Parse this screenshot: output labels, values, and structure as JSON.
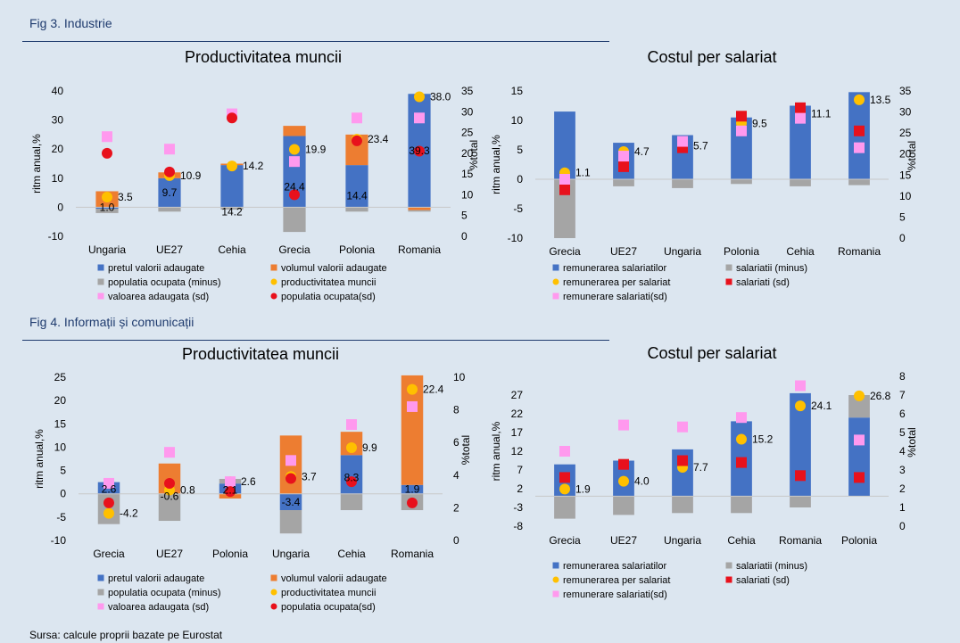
{
  "fig3": {
    "title": "Fig 3. Industrie",
    "left": {
      "title": "Productivitatea muncii",
      "ylabel": "ritm anual,%",
      "y2label": "%total",
      "legend": [
        {
          "label": "pretul valorii adaugate",
          "marker": "square",
          "color": "#4472c4"
        },
        {
          "label": "volumul valorii adaugate",
          "marker": "square",
          "color": "#ed7d31"
        },
        {
          "label": "populatia ocupata (minus)",
          "marker": "square",
          "color": "#a5a5a5"
        },
        {
          "label": "productivitatea muncii",
          "marker": "circle",
          "color": "#ffc000"
        },
        {
          "label": "valoarea adaugata (sd)",
          "marker": "square",
          "color": "#ff99ee"
        },
        {
          "label": "populatia ocupata(sd)",
          "marker": "circle",
          "color": "#e8111c"
        }
      ]
    },
    "right": {
      "title": "Costul per salariat",
      "ylabel": "ritm anual,%",
      "y2label": "%total",
      "legend": [
        {
          "label": "remunerarea salariatilor",
          "marker": "square",
          "color": "#4472c4"
        },
        {
          "label": "salariatii (minus)",
          "marker": "square",
          "color": "#a5a5a5"
        },
        {
          "label": "remunerarea per salariat",
          "marker": "circle",
          "color": "#ffc000"
        },
        {
          "label": "salariati (sd)",
          "marker": "square",
          "color": "#e8111c"
        },
        {
          "label": "remunerare salariati(sd)",
          "marker": "square",
          "color": "#ff99ee"
        }
      ]
    }
  },
  "fig4": {
    "title": "Fig 4. Informații și comunicații",
    "left": {
      "title": "Productivitatea muncii",
      "ylabel": "ritm anual,%",
      "y2label": "%total",
      "legend": [
        {
          "label": "pretul valorii adaugate",
          "marker": "square",
          "color": "#4472c4"
        },
        {
          "label": "volumul valorii adaugate",
          "marker": "square",
          "color": "#ed7d31"
        },
        {
          "label": "populatia ocupata (minus)",
          "marker": "square",
          "color": "#a5a5a5"
        },
        {
          "label": "productivitatea muncii",
          "marker": "circle",
          "color": "#ffc000"
        },
        {
          "label": "valoarea adaugata (sd)",
          "marker": "square",
          "color": "#ff99ee"
        },
        {
          "label": "populatia ocupata(sd)",
          "marker": "circle",
          "color": "#e8111c"
        }
      ]
    },
    "right": {
      "title": "Costul per salariat",
      "ylabel": "ritm anual,%",
      "y2label": "%total",
      "legend": [
        {
          "label": "remunerarea salariatilor",
          "marker": "square",
          "color": "#4472c4"
        },
        {
          "label": "salariatii (minus)",
          "marker": "square",
          "color": "#a5a5a5"
        },
        {
          "label": "remunerarea per salariat",
          "marker": "circle",
          "color": "#ffc000"
        },
        {
          "label": "salariati (sd)",
          "marker": "square",
          "color": "#e8111c"
        },
        {
          "label": "remunerare salariati(sd)",
          "marker": "square",
          "color": "#ff99ee"
        }
      ]
    }
  },
  "source": "Sursa: calcule proprii bazate pe Eurostat",
  "colors": {
    "blue": "#4472c4",
    "orange": "#ed7d31",
    "gray": "#a5a5a5",
    "yellow": "#ffc000",
    "pink": "#ff99ee",
    "red": "#e8111c"
  },
  "chart_data": [
    {
      "id": "fig3-left",
      "type": "bar",
      "title": "Productivitatea muncii",
      "ylabel": "ritm anual,%",
      "y2label": "%total",
      "ylim": [
        -10,
        40
      ],
      "yticks": [
        -10,
        0,
        10,
        20,
        30,
        40
      ],
      "y2lim": [
        0,
        35
      ],
      "y2ticks": [
        0,
        5,
        10,
        15,
        20,
        25,
        30,
        35
      ],
      "categories": [
        "Ungaria",
        "UE27",
        "Cehia",
        "Grecia",
        "Polonia",
        "Romania"
      ],
      "stacked_series": [
        {
          "name": "pretul valorii adaugate",
          "color": "#4472c4",
          "values": [
            -0.5,
            10,
            14.5,
            24.5,
            14.5,
            39
          ]
        },
        {
          "name": "volumul valorii adaugate",
          "color": "#ed7d31",
          "values": [
            5.5,
            2,
            0.5,
            3.5,
            10.5,
            -1
          ]
        },
        {
          "name": "populatia ocupata (minus)",
          "color": "#a5a5a5",
          "values": [
            -1.5,
            -1.5,
            -0.8,
            -8.5,
            -1.5,
            -0.5
          ]
        }
      ],
      "marker_series": [
        {
          "name": "productivitatea muncii",
          "axis": "y",
          "shape": "circle",
          "color": "#ffc000",
          "values": [
            3.5,
            10.9,
            14.2,
            19.9,
            23.4,
            38.0
          ]
        },
        {
          "name": "valoarea adaugata (sd)",
          "axis": "y2",
          "shape": "square",
          "color": "#ff99ee",
          "values": [
            24,
            21,
            29.5,
            18,
            28.5,
            28.5
          ]
        },
        {
          "name": "populatia ocupata(sd)",
          "axis": "y2",
          "shape": "circle",
          "color": "#e8111c",
          "values": [
            20,
            15.5,
            28.5,
            10,
            23,
            20.5
          ]
        }
      ],
      "data_labels": [
        {
          "cat": 0,
          "text": "1.0",
          "y": 0,
          "align": "center"
        },
        {
          "cat": 0,
          "text": "3.5",
          "y": 3.5,
          "align": "right"
        },
        {
          "cat": 1,
          "text": "9.7",
          "y": 5,
          "align": "center"
        },
        {
          "cat": 1,
          "text": "10.9",
          "y": 10.9,
          "align": "right"
        },
        {
          "cat": 2,
          "text": "14.2",
          "y": 14.2,
          "align": "right"
        },
        {
          "cat": 2,
          "text": "14.2",
          "y": -1.5,
          "align": "center"
        },
        {
          "cat": 3,
          "text": "19.9",
          "y": 19.9,
          "align": "right"
        },
        {
          "cat": 3,
          "text": "24.4",
          "y": 7,
          "align": "center"
        },
        {
          "cat": 4,
          "text": "23.4",
          "y": 23.4,
          "align": "right"
        },
        {
          "cat": 4,
          "text": "14.4",
          "y": 4,
          "align": "center"
        },
        {
          "cat": 5,
          "text": "38.0",
          "y": 38.0,
          "align": "right"
        },
        {
          "cat": 5,
          "text": "39.3",
          "y": 19.5,
          "align": "center"
        }
      ]
    },
    {
      "id": "fig3-right",
      "type": "bar",
      "title": "Costul per salariat",
      "ylabel": "ritm anual,%",
      "y2label": "%total",
      "ylim": [
        -10,
        15
      ],
      "yticks": [
        -10,
        -5,
        0,
        5,
        10,
        15
      ],
      "y2lim": [
        0,
        35
      ],
      "y2ticks": [
        0,
        5,
        10,
        15,
        20,
        25,
        30,
        35
      ],
      "categories": [
        "Grecia",
        "UE27",
        "Ungaria",
        "Polonia",
        "Cehia",
        "Romania"
      ],
      "stacked_series": [
        {
          "name": "remunerarea salariatilor",
          "color": "#4472c4",
          "values": [
            11.5,
            6.2,
            7.5,
            10.5,
            12.5,
            14.8
          ]
        },
        {
          "name": "salariatii (minus)",
          "color": "#a5a5a5",
          "values": [
            -10,
            -1.2,
            -1.5,
            -0.8,
            -1.2,
            -1
          ]
        }
      ],
      "marker_series": [
        {
          "name": "remunerarea per salariat",
          "axis": "y",
          "shape": "circle",
          "color": "#ffc000",
          "values": [
            1.1,
            4.7,
            5.7,
            9.5,
            11.1,
            13.5
          ]
        },
        {
          "name": "salariati (sd)",
          "axis": "y2",
          "shape": "square",
          "color": "#e8111c",
          "values": [
            11.5,
            17,
            21.5,
            29,
            31,
            25.5
          ]
        },
        {
          "name": "remunerare salariati(sd)",
          "axis": "y2",
          "shape": "square",
          "color": "#ff99ee",
          "values": [
            14,
            19.5,
            23,
            25.5,
            28.5,
            21.5
          ]
        }
      ],
      "data_labels": [
        {
          "cat": 0,
          "text": "1.1",
          "y": 1.1,
          "align": "right"
        },
        {
          "cat": 1,
          "text": "4.7",
          "y": 4.7,
          "align": "right"
        },
        {
          "cat": 2,
          "text": "5.7",
          "y": 5.7,
          "align": "right"
        },
        {
          "cat": 3,
          "text": "9.5",
          "y": 9.5,
          "align": "right"
        },
        {
          "cat": 4,
          "text": "11.1",
          "y": 11.1,
          "align": "right"
        },
        {
          "cat": 5,
          "text": "13.5",
          "y": 13.5,
          "align": "right"
        }
      ]
    },
    {
      "id": "fig4-left",
      "type": "bar",
      "title": "Productivitatea muncii",
      "ylabel": "ritm anual,%",
      "y2label": "%total",
      "ylim": [
        -10,
        25
      ],
      "yticks": [
        -10,
        -5,
        0,
        5,
        10,
        15,
        20,
        25
      ],
      "y2lim": [
        0,
        10
      ],
      "y2ticks": [
        0,
        2,
        4,
        6,
        8,
        10
      ],
      "categories": [
        "Grecia",
        "UE27",
        "Polonia",
        "Ungaria",
        "Cehia",
        "Romania"
      ],
      "stacked_series": [
        {
          "name": "pretul valorii adaugate",
          "color": "#4472c4",
          "values": [
            2.5,
            0,
            2.2,
            -3.5,
            8.3,
            1.9
          ]
        },
        {
          "name": "volumul valorii adaugate",
          "color": "#ed7d31",
          "values": [
            0,
            6.5,
            -1,
            12.5,
            5,
            23.5
          ]
        },
        {
          "name": "populatia ocupata (minus)",
          "color": "#a5a5a5",
          "values": [
            -6.5,
            -5.8,
            1,
            -5,
            -3.5,
            -3.5
          ]
        }
      ],
      "marker_series": [
        {
          "name": "productivitatea muncii",
          "axis": "y",
          "shape": "circle",
          "color": "#ffc000",
          "values": [
            -4.2,
            0.8,
            2.6,
            3.7,
            9.9,
            22.4
          ]
        },
        {
          "name": "valoarea adaugata (sd)",
          "axis": "y2",
          "shape": "square",
          "color": "#ff99ee",
          "values": [
            3.5,
            5.4,
            3.6,
            4.9,
            7.1,
            8.2
          ]
        },
        {
          "name": "populatia ocupata(sd)",
          "axis": "y2",
          "shape": "circle",
          "color": "#e8111c",
          "values": [
            2.3,
            3.5,
            3.0,
            3.8,
            3.6,
            2.3
          ]
        }
      ],
      "data_labels": [
        {
          "cat": 0,
          "text": "2.6",
          "y": 1,
          "align": "center"
        },
        {
          "cat": 0,
          "text": "-4.2",
          "y": -4.2,
          "align": "right"
        },
        {
          "cat": 1,
          "text": "-0.6",
          "y": -0.5,
          "align": "center"
        },
        {
          "cat": 1,
          "text": "0.8",
          "y": 0.8,
          "align": "right"
        },
        {
          "cat": 2,
          "text": "2.1",
          "y": 0.8,
          "align": "center"
        },
        {
          "cat": 2,
          "text": "2.6",
          "y": 2.6,
          "align": "right"
        },
        {
          "cat": 3,
          "text": "-3.4",
          "y": -1.8,
          "align": "center"
        },
        {
          "cat": 3,
          "text": "3.7",
          "y": 3.7,
          "align": "right"
        },
        {
          "cat": 4,
          "text": "8.3",
          "y": 3.5,
          "align": "center"
        },
        {
          "cat": 4,
          "text": "9.9",
          "y": 9.9,
          "align": "right"
        },
        {
          "cat": 5,
          "text": "1.9",
          "y": 1,
          "align": "center"
        },
        {
          "cat": 5,
          "text": "22.4",
          "y": 22.4,
          "align": "right"
        }
      ]
    },
    {
      "id": "fig4-right",
      "type": "bar",
      "title": "Costul per salariat",
      "ylabel": "ritm anual,%",
      "y2label": "%total",
      "ylim": [
        -8,
        32
      ],
      "yticks": [
        -8,
        -3,
        2,
        7,
        12,
        17,
        22,
        27
      ],
      "y2lim": [
        0,
        8
      ],
      "y2ticks": [
        0,
        1,
        2,
        3,
        4,
        5,
        6,
        7,
        8
      ],
      "categories": [
        "Grecia",
        "UE27",
        "Ungaria",
        "Cehia",
        "Romania",
        "Polonia"
      ],
      "stacked_series": [
        {
          "name": "remunerarea salariatilor",
          "color": "#4472c4",
          "values": [
            8.5,
            9.5,
            12.5,
            20,
            27.5,
            21
          ]
        },
        {
          "name": "salariatii (minus)",
          "color": "#a5a5a5",
          "values": [
            -6,
            -5,
            -4.5,
            -4.5,
            -3,
            6
          ]
        }
      ],
      "marker_series": [
        {
          "name": "remunerarea per salariat",
          "axis": "y",
          "shape": "circle",
          "color": "#ffc000",
          "values": [
            1.9,
            4.0,
            7.7,
            15.2,
            24.1,
            26.8
          ]
        },
        {
          "name": "salariati (sd)",
          "axis": "y2",
          "shape": "square",
          "color": "#e8111c",
          "values": [
            2.6,
            3.3,
            3.5,
            3.4,
            2.7,
            2.6
          ]
        },
        {
          "name": "remunerare salariati(sd)",
          "axis": "y2",
          "shape": "square",
          "color": "#ff99ee",
          "values": [
            4.0,
            5.4,
            5.3,
            5.8,
            7.5,
            4.6
          ]
        }
      ],
      "data_labels": [
        {
          "cat": 0,
          "text": "1.9",
          "y": 1.9,
          "align": "right"
        },
        {
          "cat": 1,
          "text": "4.0",
          "y": 4.0,
          "align": "right"
        },
        {
          "cat": 2,
          "text": "7.7",
          "y": 7.7,
          "align": "right"
        },
        {
          "cat": 3,
          "text": "15.2",
          "y": 15.2,
          "align": "right"
        },
        {
          "cat": 4,
          "text": "24.1",
          "y": 24.1,
          "align": "right"
        },
        {
          "cat": 5,
          "text": "26.8",
          "y": 26.8,
          "align": "right"
        }
      ]
    }
  ]
}
